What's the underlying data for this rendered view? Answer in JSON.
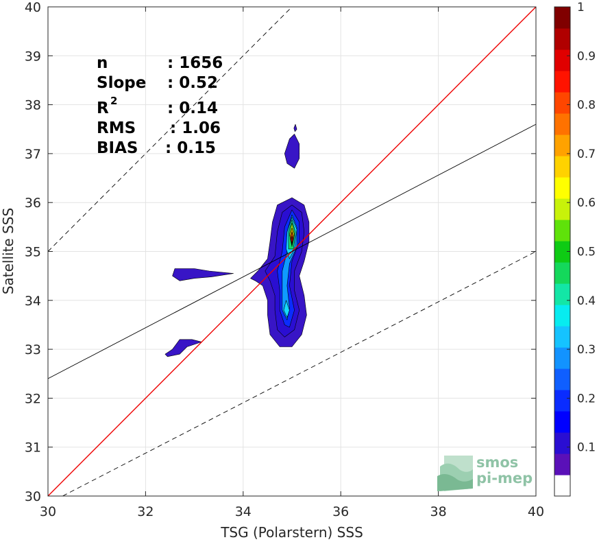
{
  "chart_data": {
    "type": "contour",
    "xlabel": "TSG (Polarstern) SSS",
    "ylabel": "Satellite SSS",
    "xlim": [
      30,
      40
    ],
    "ylim": [
      30,
      40
    ],
    "xticks": [
      30,
      32,
      34,
      36,
      38,
      40
    ],
    "yticks": [
      30,
      31,
      32,
      33,
      34,
      35,
      36,
      37,
      38,
      39,
      40
    ],
    "grid": true,
    "colorbar": {
      "range": [
        0,
        1
      ],
      "ticks": [
        0.1,
        0.2,
        0.3,
        0.4,
        0.5,
        0.6,
        0.7,
        0.8,
        0.9,
        1
      ],
      "colors": [
        "#ffffff",
        "#5a10b8",
        "#2a0ed2",
        "#0000ff",
        "#0a2cff",
        "#0f5fff",
        "#1293ff",
        "#15c3ff",
        "#07ecf0",
        "#13e6a6",
        "#14d85b",
        "#0ecb14",
        "#5fe20a",
        "#c8f20a",
        "#ffff00",
        "#ffd200",
        "#ffa200",
        "#ff7200",
        "#ff4600",
        "#ff1300",
        "#e00000",
        "#b00000",
        "#800000"
      ]
    },
    "statistics": {
      "n": "1656",
      "slope": "0.52",
      "r2": "0.14",
      "rms": "1.06",
      "bias": "0.15"
    },
    "lines": [
      {
        "name": "identity",
        "color": "#ee0000",
        "style": "solid",
        "points": [
          [
            30,
            30
          ],
          [
            40,
            40
          ]
        ]
      },
      {
        "name": "fit",
        "color": "#000000",
        "style": "solid",
        "points": [
          [
            30,
            32.4
          ],
          [
            40,
            37.6
          ]
        ]
      },
      {
        "name": "upper-bound",
        "color": "#000000",
        "style": "dashed",
        "points": [
          [
            30,
            35
          ],
          [
            35,
            40
          ]
        ]
      },
      {
        "name": "lower-bound",
        "color": "#000000",
        "style": "dashed",
        "points": [
          [
            30.3,
            30
          ],
          [
            40,
            35
          ]
        ]
      }
    ],
    "contours": [
      {
        "level": 0.05,
        "color": "#3815c6",
        "points": [
          [
            35.0,
            36.1
          ],
          [
            35.25,
            35.95
          ],
          [
            35.35,
            35.6
          ],
          [
            35.35,
            35.2
          ],
          [
            35.25,
            34.8
          ],
          [
            35.15,
            34.5
          ],
          [
            35.25,
            34.1
          ],
          [
            35.3,
            33.7
          ],
          [
            35.2,
            33.3
          ],
          [
            35.0,
            33.05
          ],
          [
            34.75,
            33.05
          ],
          [
            34.55,
            33.3
          ],
          [
            34.5,
            33.7
          ],
          [
            34.5,
            34.0
          ],
          [
            34.4,
            34.3
          ],
          [
            34.25,
            34.4
          ],
          [
            34.15,
            34.45
          ],
          [
            34.3,
            34.6
          ],
          [
            34.5,
            34.85
          ],
          [
            34.55,
            35.2
          ],
          [
            34.6,
            35.6
          ],
          [
            34.7,
            35.95
          ]
        ]
      },
      {
        "level": 0.1,
        "color": "#2a0ed2",
        "points": [
          [
            35.0,
            35.95
          ],
          [
            35.2,
            35.8
          ],
          [
            35.25,
            35.4
          ],
          [
            35.2,
            35.0
          ],
          [
            35.05,
            34.6
          ],
          [
            35.05,
            34.2
          ],
          [
            35.15,
            33.8
          ],
          [
            35.05,
            33.4
          ],
          [
            34.85,
            33.25
          ],
          [
            34.7,
            33.4
          ],
          [
            34.65,
            33.8
          ],
          [
            34.65,
            34.1
          ],
          [
            34.55,
            34.4
          ],
          [
            34.45,
            34.6
          ],
          [
            34.65,
            34.9
          ],
          [
            34.7,
            35.4
          ],
          [
            34.8,
            35.8
          ]
        ]
      },
      {
        "level": 0.2,
        "color": "#0a2cff",
        "points": [
          [
            35.0,
            35.85
          ],
          [
            35.15,
            35.6
          ],
          [
            35.15,
            35.2
          ],
          [
            35.0,
            34.8
          ],
          [
            34.95,
            34.3
          ],
          [
            35.05,
            33.8
          ],
          [
            34.95,
            33.45
          ],
          [
            34.85,
            33.5
          ],
          [
            34.75,
            33.8
          ],
          [
            34.75,
            34.2
          ],
          [
            34.7,
            34.6
          ],
          [
            34.8,
            35.0
          ],
          [
            34.85,
            35.5
          ]
        ]
      },
      {
        "level": 0.3,
        "color": "#0f9bff",
        "points": [
          [
            35.0,
            35.75
          ],
          [
            35.1,
            35.5
          ],
          [
            35.1,
            35.1
          ],
          [
            34.95,
            34.75
          ],
          [
            34.9,
            34.3
          ],
          [
            34.95,
            33.85
          ],
          [
            34.9,
            33.6
          ],
          [
            34.8,
            33.8
          ],
          [
            34.8,
            34.2
          ],
          [
            34.8,
            34.6
          ],
          [
            34.9,
            35.0
          ],
          [
            34.9,
            35.4
          ]
        ]
      },
      {
        "level": 0.4,
        "color": "#15d9ff",
        "points": [
          [
            35.0,
            35.7
          ],
          [
            35.1,
            35.45
          ],
          [
            35.05,
            35.05
          ],
          [
            34.95,
            34.85
          ],
          [
            34.88,
            35.05
          ],
          [
            34.9,
            35.4
          ]
        ]
      },
      {
        "level": 0.4,
        "color": "#15d9ff",
        "points": [
          [
            34.88,
            34.0
          ],
          [
            34.95,
            33.8
          ],
          [
            34.9,
            33.65
          ],
          [
            34.83,
            33.8
          ]
        ]
      },
      {
        "level": 0.5,
        "color": "#14d86a",
        "points": [
          [
            35.0,
            35.65
          ],
          [
            35.07,
            35.4
          ],
          [
            35.03,
            35.05
          ],
          [
            34.93,
            35.05
          ],
          [
            34.93,
            35.4
          ]
        ]
      },
      {
        "level": 0.6,
        "color": "#c8f20a",
        "points": [
          [
            35.0,
            35.58
          ],
          [
            35.05,
            35.35
          ],
          [
            35.0,
            35.1
          ],
          [
            34.95,
            35.35
          ]
        ]
      },
      {
        "level": 0.7,
        "color": "#ffb000",
        "points": [
          [
            35.0,
            35.48
          ],
          [
            35.04,
            35.3
          ],
          [
            35.0,
            35.13
          ],
          [
            34.96,
            35.3
          ]
        ]
      },
      {
        "level": 0.85,
        "color": "#ff3c00",
        "points": [
          [
            35.0,
            35.4
          ],
          [
            35.03,
            35.25
          ],
          [
            35.0,
            35.15
          ],
          [
            34.97,
            35.25
          ]
        ]
      },
      {
        "level": 0.95,
        "color": "#b00000",
        "points": [
          [
            35.0,
            35.32
          ],
          [
            35.02,
            35.23
          ],
          [
            35.0,
            35.17
          ],
          [
            34.98,
            35.23
          ]
        ]
      },
      {
        "level": 0.05,
        "color": "#3815c6",
        "points": [
          [
            35.05,
            37.4
          ],
          [
            35.15,
            37.2
          ],
          [
            35.15,
            36.9
          ],
          [
            35.05,
            36.7
          ],
          [
            34.9,
            36.8
          ],
          [
            34.85,
            37.0
          ],
          [
            34.95,
            37.3
          ]
        ]
      },
      {
        "level": 0.05,
        "color": "#3815c6",
        "points": [
          [
            32.6,
            34.65
          ],
          [
            33.0,
            34.65
          ],
          [
            33.3,
            34.6
          ],
          [
            33.8,
            34.55
          ],
          [
            33.35,
            34.48
          ],
          [
            33.0,
            34.45
          ],
          [
            32.7,
            34.4
          ],
          [
            32.55,
            34.5
          ]
        ]
      },
      {
        "level": 0.05,
        "color": "#3815c6",
        "points": [
          [
            32.7,
            33.2
          ],
          [
            32.95,
            33.2
          ],
          [
            33.15,
            33.15
          ],
          [
            32.85,
            33.05
          ],
          [
            32.7,
            32.9
          ],
          [
            32.45,
            32.85
          ],
          [
            32.4,
            32.9
          ],
          [
            32.55,
            33.0
          ]
        ]
      },
      {
        "level": 0.05,
        "color": "#3815c6",
        "points": [
          [
            35.07,
            37.6
          ],
          [
            35.1,
            37.5
          ],
          [
            35.06,
            37.45
          ],
          [
            35.04,
            37.52
          ]
        ]
      }
    ]
  },
  "logo": {
    "line1": "smos",
    "line2": "pi-mep"
  }
}
